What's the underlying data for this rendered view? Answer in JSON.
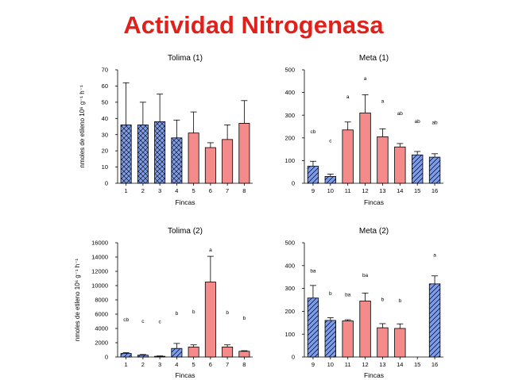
{
  "title": "Actividad Nitrogenasa",
  "colors": {
    "title": "#e0201b",
    "blue_hatched": "#7f9ce8",
    "red_solid": "#f58a8a",
    "edge": "#000000"
  },
  "chart_data": [
    {
      "type": "bar",
      "title": "Tolima (1)",
      "xlabel": "Fincas",
      "ylabel": "nmoles de etileno 10⁶ g⁻¹ h⁻¹",
      "ylim": [
        0,
        70
      ],
      "yticks": [
        0,
        10,
        20,
        30,
        40,
        50,
        60,
        70
      ],
      "categories": [
        "1",
        "2",
        "3",
        "4",
        "5",
        "6",
        "7",
        "8"
      ],
      "values": [
        36,
        36,
        38,
        28,
        31,
        22,
        27,
        37
      ],
      "errors": [
        26,
        14,
        17,
        11,
        13,
        3,
        9,
        14
      ],
      "styles": [
        "hatch",
        "hatch",
        "hatch",
        "hatch",
        "solid",
        "solid",
        "solid",
        "solid"
      ],
      "labels": [
        "",
        "",
        "",
        "",
        "",
        "",
        "",
        ""
      ]
    },
    {
      "type": "bar",
      "title": "Meta (1)",
      "xlabel": "Fincas",
      "ylabel": "",
      "ylim": [
        0,
        500
      ],
      "yticks": [
        0,
        100,
        200,
        300,
        400,
        500
      ],
      "categories": [
        "9",
        "10",
        "11",
        "12",
        "13",
        "14",
        "15",
        "16"
      ],
      "values": [
        75,
        30,
        235,
        310,
        205,
        160,
        125,
        115
      ],
      "errors": [
        22,
        10,
        35,
        80,
        35,
        15,
        15,
        15
      ],
      "styles": [
        "hatch",
        "hatch",
        "solid",
        "solid",
        "solid",
        "solid",
        "hatch",
        "hatch"
      ],
      "labels": [
        "cb",
        "c",
        "a",
        "a",
        "a",
        "ab",
        "ab",
        "ab"
      ],
      "label_values": [
        220,
        180,
        375,
        455,
        355,
        300,
        265,
        260
      ]
    },
    {
      "type": "bar",
      "title": "Tolima (2)",
      "xlabel": "Fincas",
      "ylabel": "nmoles de etileno 10⁶ g⁻¹ h⁻¹",
      "ylim": [
        0,
        16000
      ],
      "yticks": [
        0,
        2000,
        4000,
        6000,
        8000,
        10000,
        12000,
        14000,
        16000
      ],
      "categories": [
        "1",
        "2",
        "3",
        "4",
        "5",
        "6",
        "7",
        "8"
      ],
      "values": [
        500,
        250,
        100,
        1200,
        1400,
        10500,
        1400,
        800
      ],
      "errors": [
        100,
        100,
        50,
        700,
        300,
        3600,
        300,
        80
      ],
      "styles": [
        "hatch",
        "hatch",
        "hatch",
        "hatch",
        "solid",
        "solid",
        "solid",
        "solid"
      ],
      "labels": [
        "cb",
        "c",
        "c",
        "b",
        "b",
        "a",
        "b",
        "b"
      ],
      "label_values": [
        5000,
        4800,
        4700,
        5900,
        6100,
        14800,
        6000,
        5200
      ]
    },
    {
      "type": "bar",
      "title": "Meta (2)",
      "xlabel": "Fincas",
      "ylabel": "",
      "ylim": [
        0,
        500
      ],
      "yticks": [
        0,
        100,
        200,
        300,
        400,
        500
      ],
      "categories": [
        "9",
        "10",
        "11",
        "12",
        "13",
        "14",
        "15",
        "16"
      ],
      "values": [
        258,
        160,
        158,
        245,
        128,
        125,
        0,
        320
      ],
      "errors": [
        55,
        12,
        5,
        35,
        18,
        20,
        0,
        35
      ],
      "styles": [
        "hatch",
        "hatch",
        "solid",
        "solid",
        "solid",
        "solid",
        "none",
        "hatch"
      ],
      "labels": [
        "ba",
        "b",
        "ba",
        "ba",
        "b",
        "b",
        "",
        "a"
      ],
      "label_values": [
        370,
        270,
        265,
        350,
        245,
        240,
        0,
        440
      ]
    }
  ]
}
